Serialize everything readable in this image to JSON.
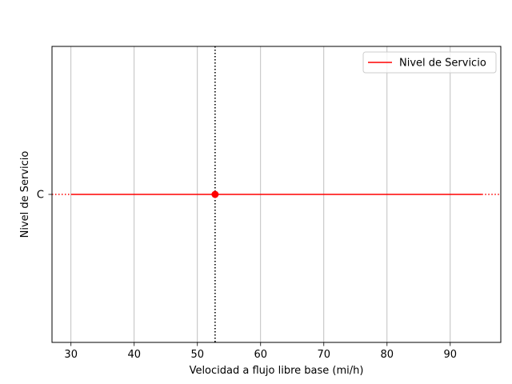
{
  "chart_data": {
    "type": "line",
    "title": "",
    "xlabel": "Velocidad a flujo libre base (mi/h)",
    "ylabel": "Nivel de Servicio",
    "xlim": [
      27,
      98
    ],
    "x_ticks": [
      30,
      40,
      50,
      60,
      70,
      80,
      90
    ],
    "y_categories": [
      "C"
    ],
    "grid": "x-axis",
    "legend_position": "top-right",
    "series": [
      {
        "name": "Nivel de Servicio",
        "color": "#ff0000",
        "x": [
          30,
          95
        ],
        "y": [
          "C",
          "C"
        ]
      }
    ],
    "dotted_extensions": [
      {
        "x": [
          27,
          30
        ],
        "y": "C",
        "color": "#ff0000"
      },
      {
        "x": [
          95,
          98
        ],
        "y": "C",
        "color": "#ff0000"
      }
    ],
    "marker_point": {
      "x": 52.8,
      "y": "C",
      "color": "#ff0000"
    },
    "vertical_reference_line": {
      "x": 52.8,
      "color": "#000000",
      "style": "dotted"
    }
  }
}
